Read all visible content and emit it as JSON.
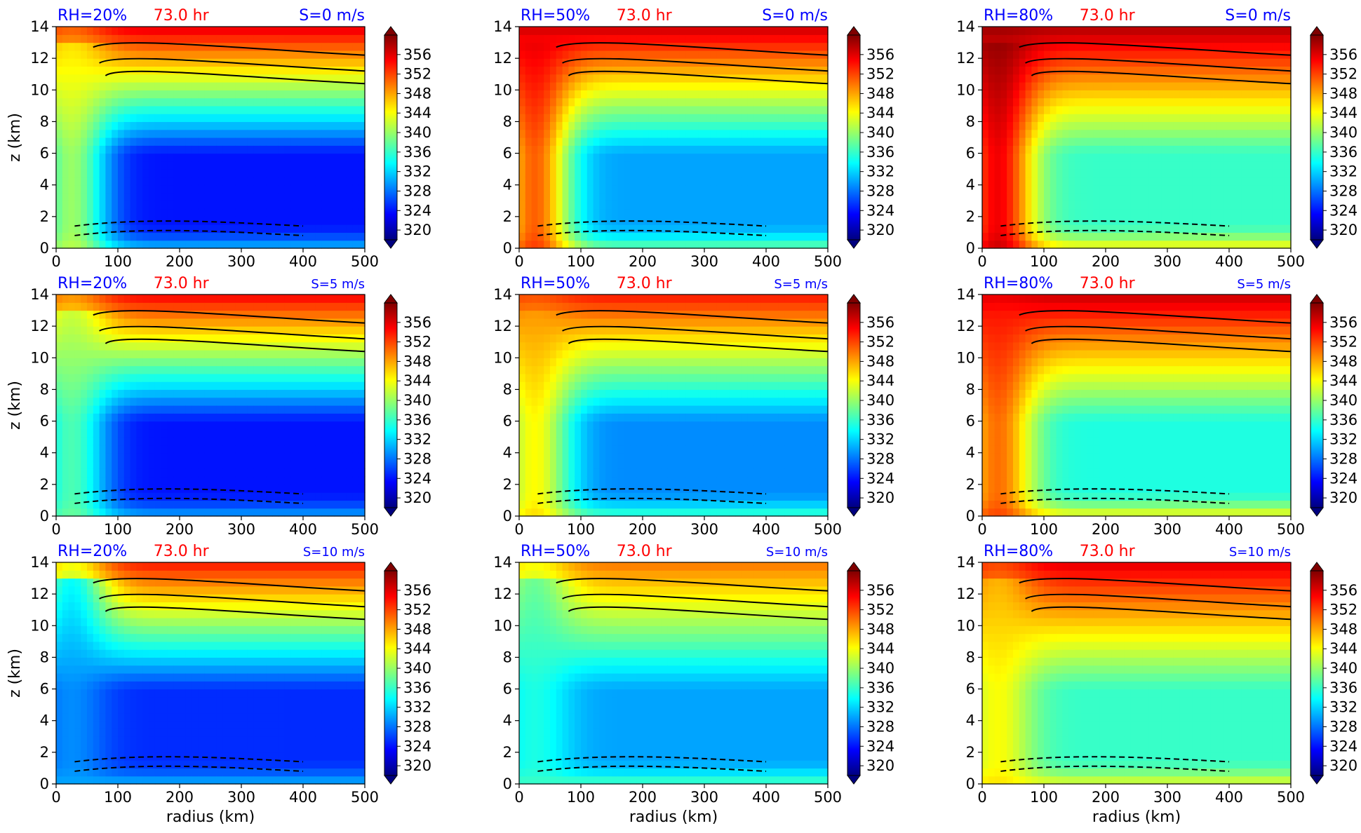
{
  "figure": {
    "time_label": "73.0 hr",
    "xlabel": "radius (km)",
    "ylabel": "z (km)",
    "colors": {
      "title_blue": "#0000ff",
      "title_red": "#ff0000"
    }
  },
  "chart_data": [
    {
      "type": "heatmap",
      "rh": "RH=20%",
      "time": "73.0 hr",
      "shear": "S=0 m/s",
      "xlabel": "",
      "ylabel": "z (km)",
      "x_ticks": [
        0,
        100,
        200,
        300,
        400,
        500
      ],
      "y_ticks": [
        0,
        2,
        4,
        6,
        8,
        10,
        12,
        14
      ],
      "xlim": [
        0,
        500
      ],
      "ylim": [
        0,
        14
      ],
      "colorbar_ticks": [
        320,
        324,
        328,
        332,
        336,
        340,
        344,
        348,
        352,
        356
      ],
      "colorbar_range": [
        318,
        360
      ],
      "colormap": "jet",
      "field": {
        "low_core": 324,
        "low_extent": "wide",
        "top": 356,
        "surface": 340,
        "inner_warm": 344
      },
      "contours": "black solid positive, dashed negative"
    },
    {
      "type": "heatmap",
      "rh": "RH=50%",
      "time": "73.0 hr",
      "shear": "S=0 m/s",
      "xlabel": "",
      "ylabel": "",
      "x_ticks": [
        0,
        100,
        200,
        300,
        400,
        500
      ],
      "y_ticks": [
        0,
        2,
        4,
        6,
        8,
        10,
        12,
        14
      ],
      "xlim": [
        0,
        500
      ],
      "ylim": [
        0,
        14
      ],
      "colorbar_ticks": [
        320,
        324,
        328,
        332,
        336,
        340,
        344,
        348,
        352,
        356
      ],
      "colorbar_range": [
        318,
        360
      ],
      "colormap": "jet",
      "field": {
        "low_core": 330,
        "low_extent": "mid",
        "top": 357,
        "surface": 344,
        "inner_warm": 356
      },
      "contours": "black solid positive, dashed negative"
    },
    {
      "type": "heatmap",
      "rh": "RH=80%",
      "time": "73.0 hr",
      "shear": "S=0 m/s",
      "xlabel": "",
      "ylabel": "",
      "x_ticks": [
        0,
        100,
        200,
        300,
        400,
        500
      ],
      "y_ticks": [
        0,
        2,
        4,
        6,
        8,
        10,
        12,
        14
      ],
      "xlim": [
        0,
        500
      ],
      "ylim": [
        0,
        14
      ],
      "colorbar_ticks": [
        320,
        324,
        328,
        332,
        336,
        340,
        344,
        348,
        352,
        356
      ],
      "colorbar_range": [
        318,
        360
      ],
      "colormap": "jet",
      "field": {
        "low_core": 336,
        "low_extent": "narrow",
        "top": 358,
        "surface": 348,
        "inner_warm": 360
      },
      "contours": "black solid positive, dashed negative"
    },
    {
      "type": "heatmap",
      "rh": "RH=20%",
      "time": "73.0 hr",
      "shear": "S=5 m/s",
      "xlabel": "",
      "ylabel": "z (km)",
      "x_ticks": [
        0,
        100,
        200,
        300,
        400,
        500
      ],
      "y_ticks": [
        0,
        2,
        4,
        6,
        8,
        10,
        12,
        14
      ],
      "xlim": [
        0,
        500
      ],
      "ylim": [
        0,
        14
      ],
      "colorbar_ticks": [
        320,
        324,
        328,
        332,
        336,
        340,
        344,
        348,
        352,
        356
      ],
      "colorbar_range": [
        318,
        360
      ],
      "colormap": "jet",
      "field": {
        "low_core": 324,
        "low_extent": "wide",
        "top": 355,
        "surface": 338,
        "inner_warm": 340
      },
      "contours": "black solid positive, dashed negative"
    },
    {
      "type": "heatmap",
      "rh": "RH=50%",
      "time": "73.0 hr",
      "shear": "S=5 m/s",
      "xlabel": "",
      "ylabel": "",
      "x_ticks": [
        0,
        100,
        200,
        300,
        400,
        500
      ],
      "y_ticks": [
        0,
        2,
        4,
        6,
        8,
        10,
        12,
        14
      ],
      "xlim": [
        0,
        500
      ],
      "ylim": [
        0,
        14
      ],
      "colorbar_ticks": [
        320,
        324,
        328,
        332,
        336,
        340,
        344,
        348,
        352,
        356
      ],
      "colorbar_range": [
        318,
        360
      ],
      "colormap": "jet",
      "field": {
        "low_core": 329,
        "low_extent": "mid",
        "top": 354,
        "surface": 342,
        "inner_warm": 348
      },
      "contours": "black solid positive, dashed negative"
    },
    {
      "type": "heatmap",
      "rh": "RH=80%",
      "time": "73.0 hr",
      "shear": "S=5 m/s",
      "xlabel": "",
      "ylabel": "",
      "x_ticks": [
        0,
        100,
        200,
        300,
        400,
        500
      ],
      "y_ticks": [
        0,
        2,
        4,
        6,
        8,
        10,
        12,
        14
      ],
      "xlim": [
        0,
        500
      ],
      "ylim": [
        0,
        14
      ],
      "colorbar_ticks": [
        320,
        324,
        328,
        332,
        336,
        340,
        344,
        348,
        352,
        356
      ],
      "colorbar_range": [
        318,
        360
      ],
      "colormap": "jet",
      "field": {
        "low_core": 335,
        "low_extent": "narrow",
        "top": 357,
        "surface": 348,
        "inner_warm": 354
      },
      "contours": "black solid positive, dashed negative"
    },
    {
      "type": "heatmap",
      "rh": "RH=20%",
      "time": "73.0 hr",
      "shear": "S=10 m/s",
      "xlabel": "radius (km)",
      "ylabel": "z (km)",
      "x_ticks": [
        0,
        100,
        200,
        300,
        400,
        500
      ],
      "y_ticks": [
        0,
        2,
        4,
        6,
        8,
        10,
        12,
        14
      ],
      "xlim": [
        0,
        500
      ],
      "ylim": [
        0,
        14
      ],
      "colorbar_ticks": [
        320,
        324,
        328,
        332,
        336,
        340,
        344,
        348,
        352,
        356
      ],
      "colorbar_range": [
        318,
        360
      ],
      "colormap": "jet",
      "field": {
        "low_core": 325,
        "low_extent": "wide",
        "top": 354,
        "surface": 338,
        "inner_warm": 330
      },
      "contours": "black solid positive, dashed negative"
    },
    {
      "type": "heatmap",
      "rh": "RH=50%",
      "time": "73.0 hr",
      "shear": "S=10 m/s",
      "xlabel": "radius (km)",
      "ylabel": "",
      "x_ticks": [
        0,
        100,
        200,
        300,
        400,
        500
      ],
      "y_ticks": [
        0,
        2,
        4,
        6,
        8,
        10,
        12,
        14
      ],
      "xlim": [
        0,
        500
      ],
      "ylim": [
        0,
        14
      ],
      "colorbar_ticks": [
        320,
        324,
        328,
        332,
        336,
        340,
        344,
        348,
        352,
        356
      ],
      "colorbar_range": [
        318,
        360
      ],
      "colormap": "jet",
      "field": {
        "low_core": 330,
        "low_extent": "mid",
        "top": 350,
        "surface": 342,
        "inner_warm": 336
      },
      "contours": "black solid positive, dashed negative"
    },
    {
      "type": "heatmap",
      "rh": "RH=80%",
      "time": "73.0 hr",
      "shear": "S=10 m/s",
      "xlabel": "radius (km)",
      "ylabel": "",
      "x_ticks": [
        0,
        100,
        200,
        300,
        400,
        500
      ],
      "y_ticks": [
        0,
        2,
        4,
        6,
        8,
        10,
        12,
        14
      ],
      "xlim": [
        0,
        500
      ],
      "ylim": [
        0,
        14
      ],
      "colorbar_ticks": [
        320,
        324,
        328,
        332,
        336,
        340,
        344,
        348,
        352,
        356
      ],
      "colorbar_range": [
        318,
        360
      ],
      "colormap": "jet",
      "field": {
        "low_core": 336,
        "low_extent": "narrow",
        "top": 356,
        "surface": 346,
        "inner_warm": 346
      },
      "contours": "black solid positive, dashed negative"
    }
  ]
}
